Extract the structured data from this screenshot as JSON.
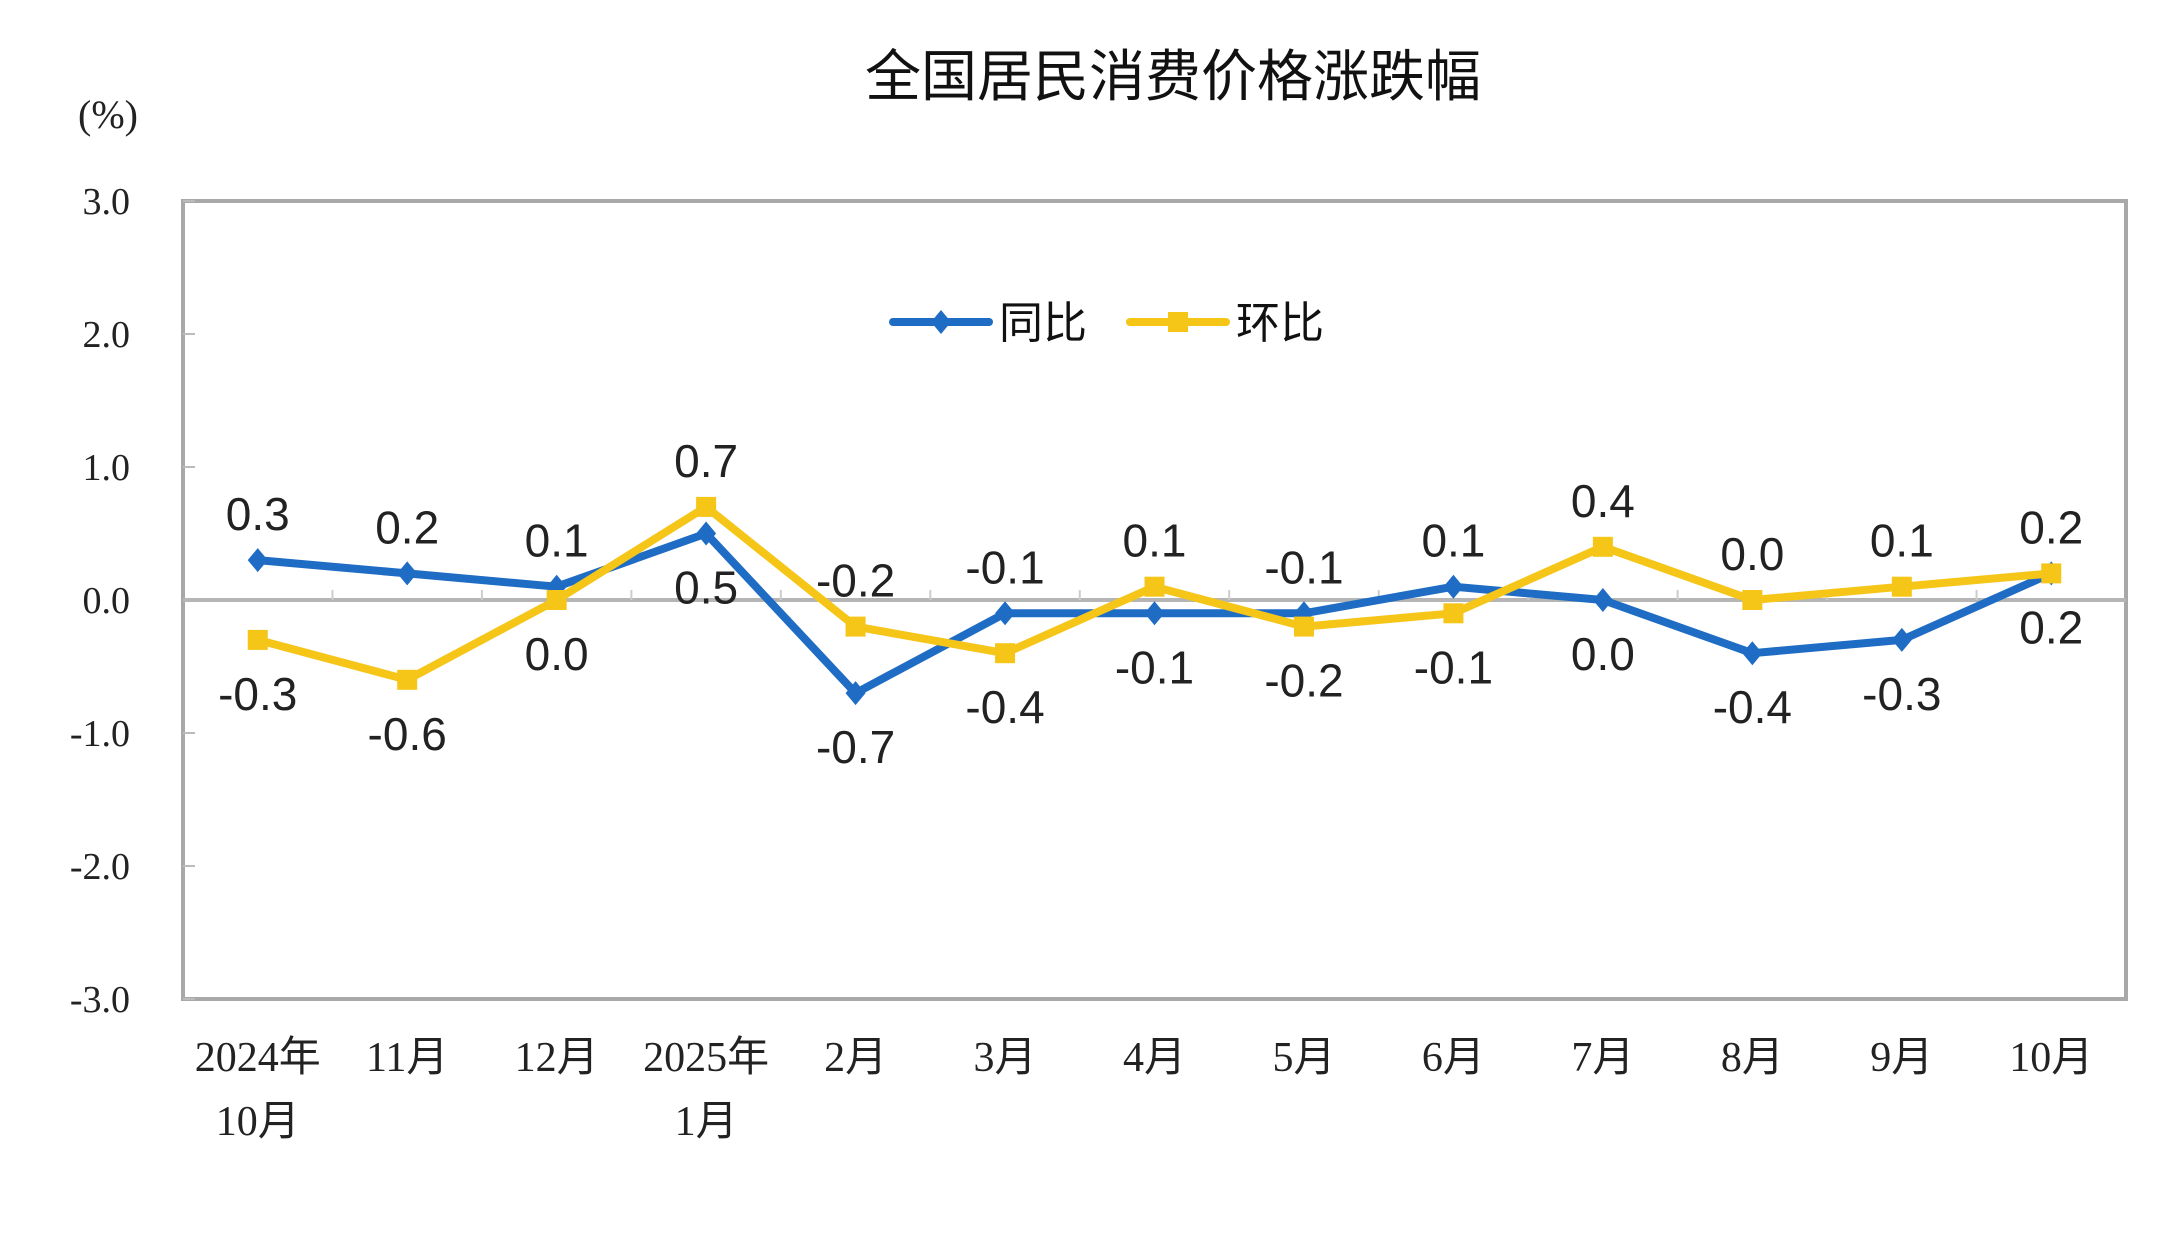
{
  "chart_data": {
    "type": "line",
    "title": "全国居民消费价格涨跌幅",
    "ylabel": "(%)",
    "xlabel": "",
    "ylim": [
      -3.0,
      3.0
    ],
    "yticks": [
      "3.0",
      "2.0",
      "1.0",
      "0.0",
      "-1.0",
      "-2.0",
      "-3.0"
    ],
    "categories": [
      [
        "2024年",
        "10月"
      ],
      [
        "11月"
      ],
      [
        "12月"
      ],
      [
        "2025年",
        "1月"
      ],
      [
        "2月"
      ],
      [
        "3月"
      ],
      [
        "4月"
      ],
      [
        "5月"
      ],
      [
        "6月"
      ],
      [
        "7月"
      ],
      [
        "8月"
      ],
      [
        "9月"
      ],
      [
        "10月"
      ]
    ],
    "grid": false,
    "legend_position": "top-center",
    "series": [
      {
        "name": "同比",
        "color": "#1f6cc4",
        "marker": "diamond",
        "values": [
          0.3,
          0.2,
          0.1,
          0.5,
          -0.7,
          -0.1,
          -0.1,
          -0.1,
          0.1,
          0.0,
          -0.4,
          -0.3,
          0.2
        ],
        "labels": [
          "0.3",
          "0.2",
          "0.1",
          "0.5",
          "-0.7",
          "-0.1",
          "-0.1",
          "-0.1",
          "0.1",
          "0.0",
          "-0.4",
          "-0.3",
          "0.2"
        ]
      },
      {
        "name": "环比",
        "color": "#f5c518",
        "marker": "square",
        "values": [
          -0.3,
          -0.6,
          0.0,
          0.7,
          -0.2,
          -0.4,
          0.1,
          -0.2,
          -0.1,
          0.4,
          0.0,
          0.1,
          0.2
        ],
        "labels": [
          "-0.3",
          "-0.6",
          "0.0",
          "0.7",
          "-0.2",
          "-0.4",
          "0.1",
          "-0.2",
          "-0.1",
          "0.4",
          "0.0",
          "0.1",
          "0.2"
        ]
      }
    ]
  }
}
